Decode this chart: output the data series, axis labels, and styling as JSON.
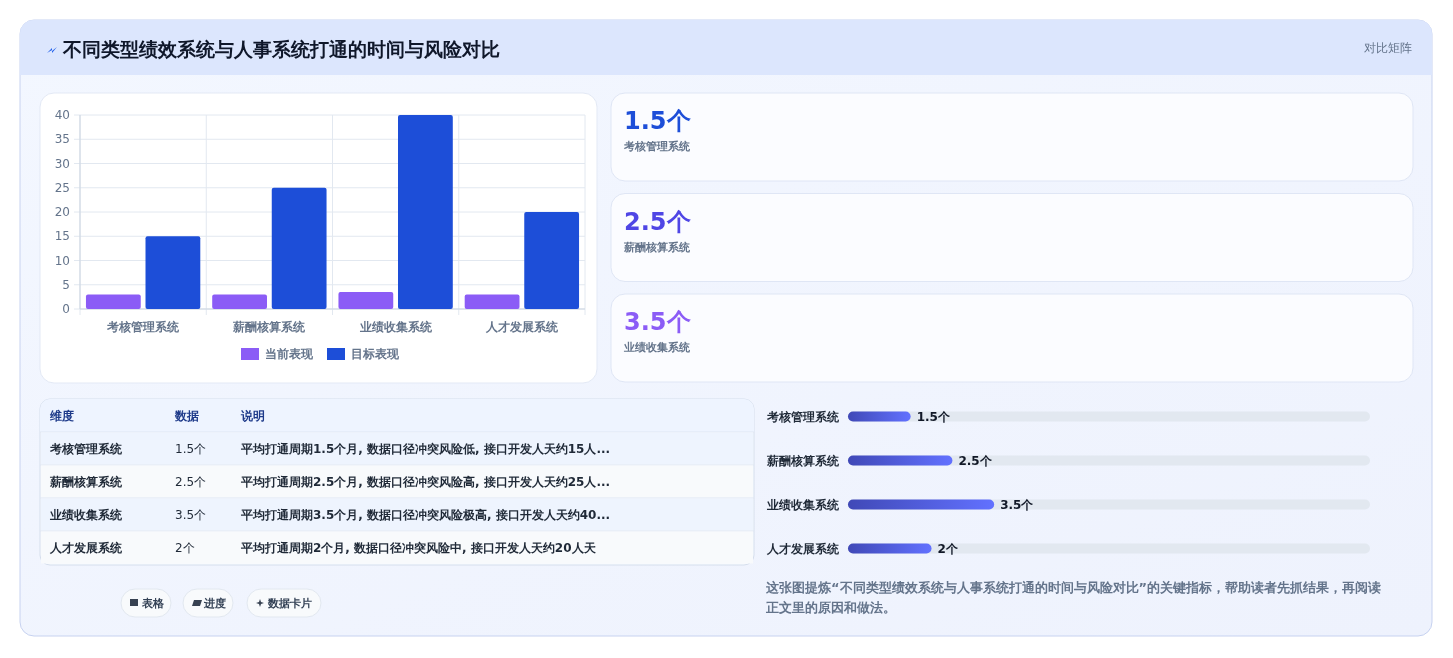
{
  "chart_data": [
    {
      "type": "other",
      "title": "不同类型绩效系统与人事系统打通的时间与风险对比",
      "subtitle": "对比矩阵"
    },
    {
      "type": "bar",
      "categories": [
        "考核管理系统",
        "薪酬核算系统",
        "业绩收集系统",
        "人才发展系统"
      ],
      "series": [
        {
          "name": "当前表现",
          "color": "#8b5cf6",
          "values": [
            3,
            3,
            3.5,
            3
          ]
        },
        {
          "name": "目标表现",
          "color": "#1d4ed8",
          "values": [
            15,
            25,
            40,
            20
          ]
        }
      ],
      "ylim": [
        0,
        40
      ],
      "yticks": [
        0,
        5,
        10,
        15,
        20,
        25,
        30,
        35,
        40
      ],
      "grid": true,
      "legend": "bottom"
    },
    {
      "type": "other",
      "categories": [
        "考核管理系统",
        "薪酬核算系统",
        "业绩收集系统"
      ],
      "value_labels": [
        "1.5个",
        "2.5个",
        "3.5个"
      ]
    },
    {
      "type": "other",
      "categories": [
        "考核管理系统",
        "薪酬核算系统",
        "业绩收集系统",
        "人才发展系统"
      ],
      "value_labels": [
        "1.5个",
        "2.5个",
        "3.5个",
        "2个"
      ],
      "annotations": [
        "维度",
        "数据",
        "说明",
        "平均打通周期1.5个月, 数据口径冲突风险低, 接口开发人天约15人...",
        "平均打通周期2.5个月, 数据口径冲突风险高, 接口开发人天约25人...",
        "平均打通周期3.5个月, 数据口径冲突风险极高, 接口开发人天约40...",
        "平均打通周期2个月, 数据口径冲突风险中, 接口开发人天约20人天"
      ]
    },
    {
      "type": "bar",
      "orientation": "horizontal",
      "categories": [
        "考核管理系统",
        "薪酬核算系统",
        "业绩收集系统",
        "人才发展系统"
      ],
      "values": [
        1.5,
        2.5,
        3.5,
        2
      ],
      "value_labels": [
        "1.5个",
        "2.5个",
        "3.5个",
        "2个"
      ],
      "color": "#4f5be3",
      "xlim": [
        0,
        12.5
      ],
      "tick_labels": "y",
      "annotations": [
        "这张图提炼“不同类型绩效系统与人事系统打通的时间与风险对比”的关键指标，帮助读者先抓结果，再阅读正文里的原因和做法。"
      ]
    },
    {
      "type": "other",
      "annotations": [
        "表格",
        "进度",
        "数据卡片"
      ]
    }
  ]
}
